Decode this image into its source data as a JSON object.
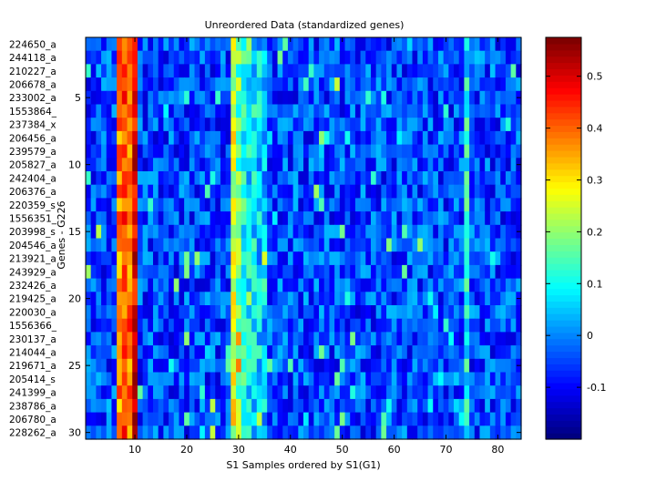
{
  "chart_data": {
    "type": "heatmap",
    "title": "Unreordered Data (standardized genes)",
    "xlabel": "S1 Samples ordered by S1(G1)",
    "ylabel": "Genes - G226",
    "n_rows": 30,
    "n_cols": 84,
    "x_ticks": [
      10,
      20,
      30,
      40,
      50,
      60,
      70,
      80
    ],
    "y_ticks": [
      5,
      10,
      15,
      20,
      25,
      30
    ],
    "row_labels": [
      "224650_a",
      "244118_a",
      "210227_a",
      "206678_a",
      "233002_a",
      "1553864_",
      "237384_x",
      "206456_a",
      "239579_a",
      "205827_a",
      "242404_a",
      "206376_a",
      "220359_s",
      "1556351_",
      "203998_s",
      "204546_a",
      "213921_a",
      "243929_a",
      "232426_a",
      "219425_a",
      "220030_a",
      "1556366_",
      "230137_a",
      "214044_a",
      "219671_a",
      "205414_s",
      "241399_a",
      "238786_a",
      "206780_a",
      "228262_a"
    ],
    "colorbar": {
      "colormap": "jet",
      "clim": [
        -0.2,
        0.575
      ],
      "ticks": [
        -0.1,
        0,
        0.1,
        0.2,
        0.3,
        0.4,
        0.5
      ],
      "tick_labels": [
        "-0.1",
        "0",
        "0.1",
        "0.2",
        "0.3",
        "0.4",
        "0.5"
      ]
    },
    "column_profile": {
      "hot_columns": [
        7,
        8,
        9,
        10
      ],
      "hot_column_values": [
        0.38,
        0.42,
        0.4,
        0.5
      ],
      "warm_columns": [
        29,
        30
      ],
      "warm_column_values": [
        0.26,
        0.17
      ],
      "cool_bright_columns": [
        31,
        32,
        33,
        34,
        35,
        74
      ],
      "cool_bright_values": [
        0.1,
        0.08,
        0.07,
        0.06,
        0.04,
        0.1
      ],
      "background_mean": -0.05,
      "noise_amplitude": 0.09
    }
  }
}
